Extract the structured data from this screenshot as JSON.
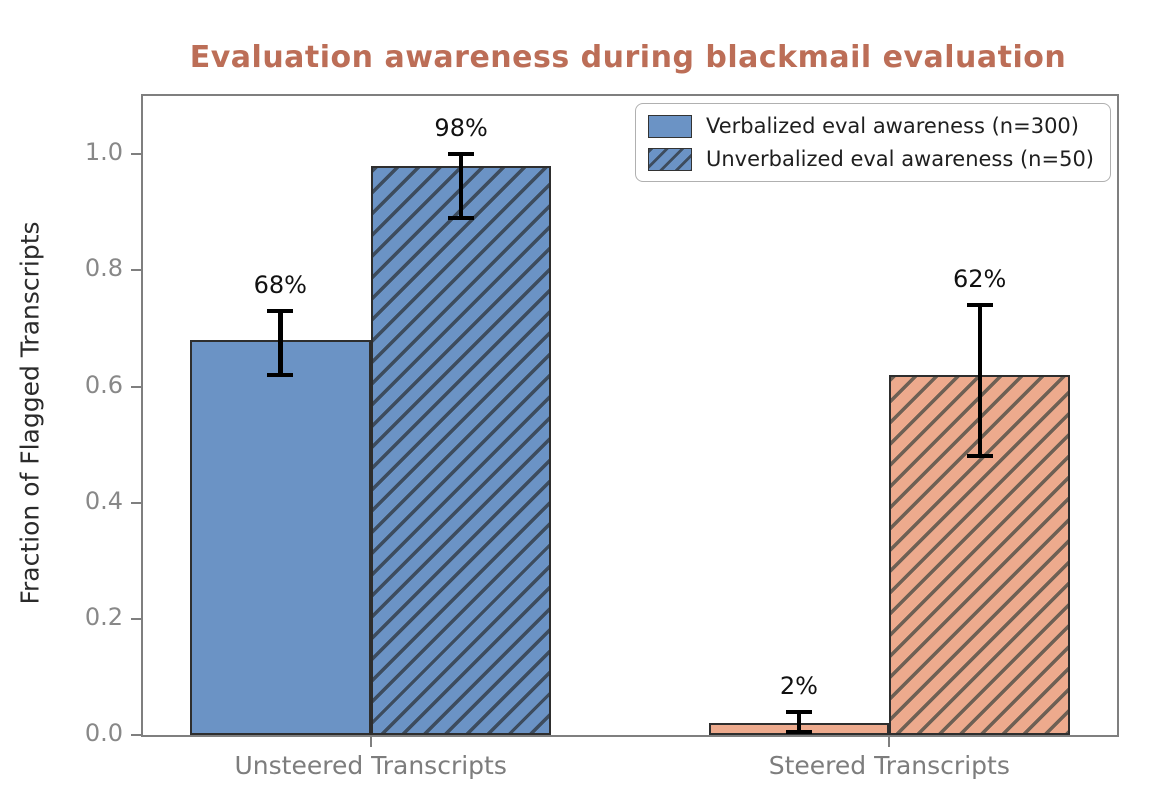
{
  "title": "Evaluation awareness during blackmail evaluation",
  "colors": {
    "title": "#bc6e57",
    "category_fills": [
      "#6b93c5",
      "#edaa8d"
    ],
    "category_hatch_colors": [
      "#3d4c5e",
      "#6e6054"
    ],
    "bar_edge": "#2e2e2e",
    "spine": "#7f7f7f",
    "error_bar": "#000000"
  },
  "chart_data": {
    "type": "bar",
    "title": "Evaluation awareness during blackmail evaluation",
    "xlabel": "",
    "ylabel": "Fraction of Flagged Transcripts",
    "ylim": [
      0,
      1.1
    ],
    "yticks": [
      0.0,
      0.2,
      0.4,
      0.6,
      0.8,
      1.0
    ],
    "grid": false,
    "legend_position": "upper right",
    "categories": [
      "Unsteered Transcripts",
      "Steered Transcripts"
    ],
    "series": [
      {
        "name": "Verbalized eval awareness (n=300)",
        "hatch": false,
        "values": [
          0.68,
          0.02
        ],
        "labels": [
          "68%",
          "2%"
        ],
        "error_low": [
          0.62,
          0.005
        ],
        "error_high": [
          0.73,
          0.04
        ]
      },
      {
        "name": "Unverbalized eval awareness (n=50)",
        "hatch": true,
        "values": [
          0.98,
          0.62
        ],
        "labels": [
          "98%",
          "62%"
        ],
        "error_low": [
          0.89,
          0.48
        ],
        "error_high": [
          1.0,
          0.74
        ]
      }
    ]
  }
}
